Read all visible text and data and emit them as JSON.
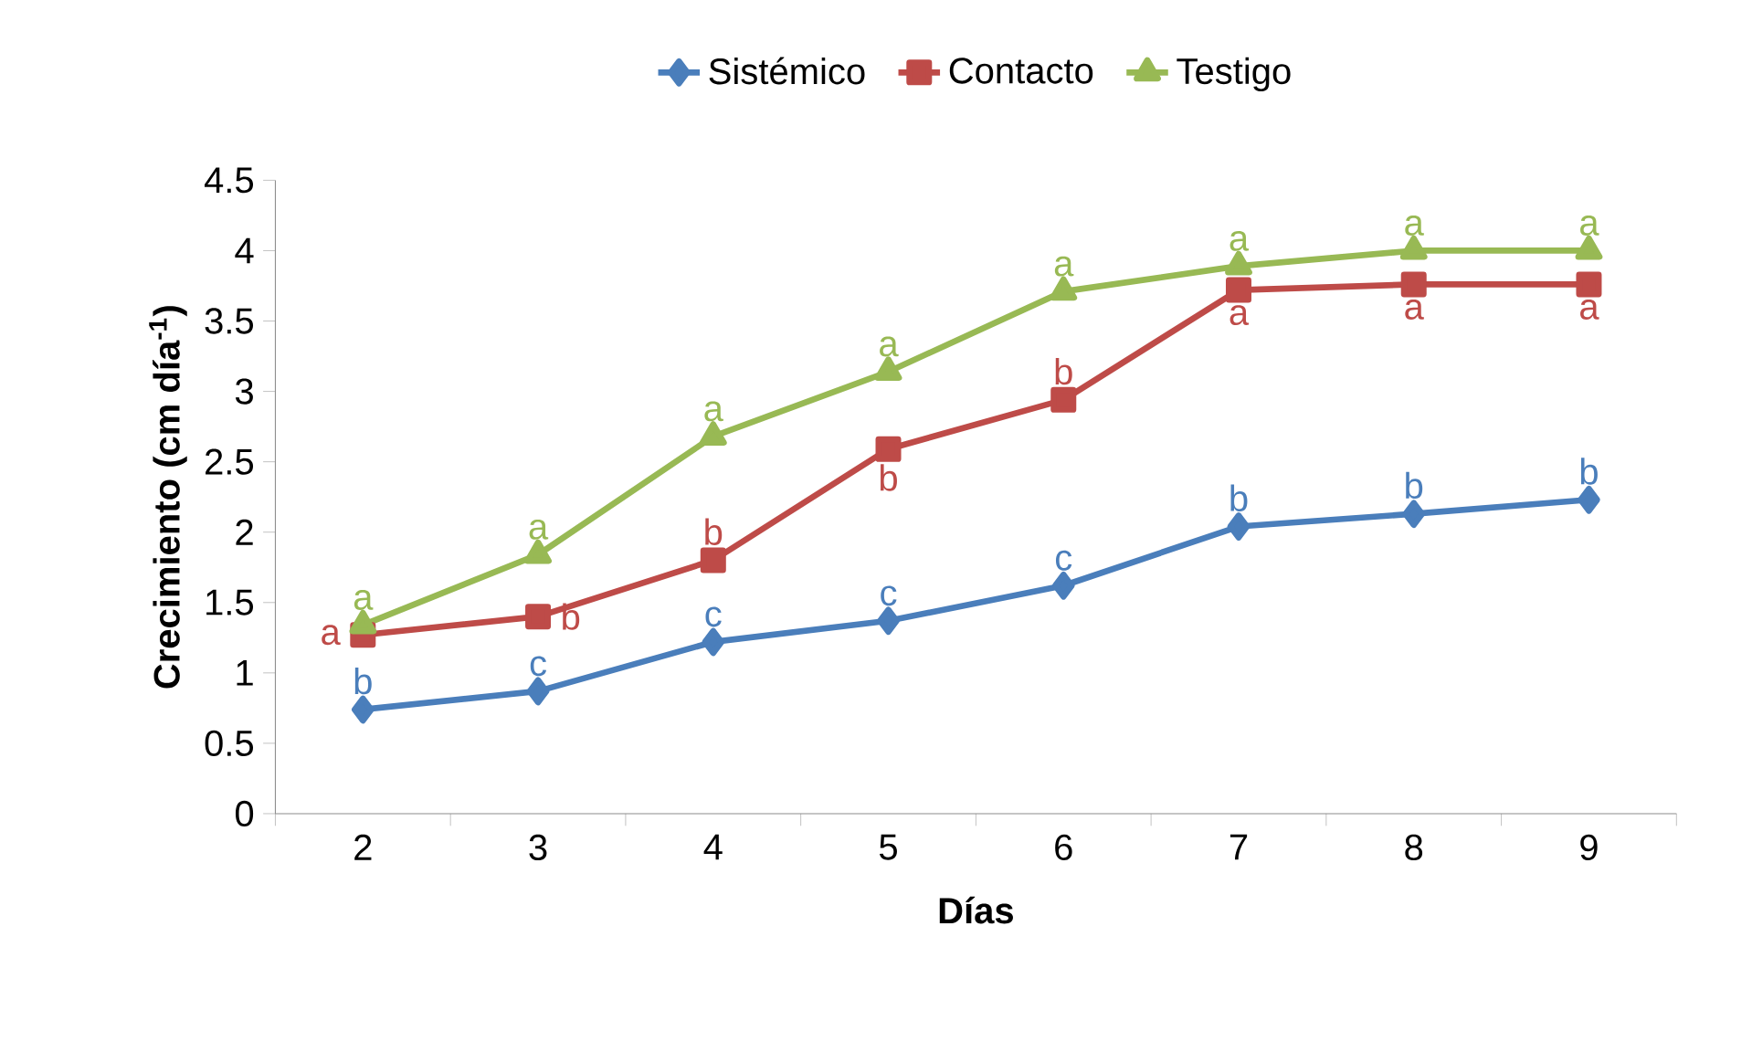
{
  "chart_data": {
    "type": "line",
    "xlabel": "Días",
    "ylabel": "Crecimiento (cm día$^{-1}$)",
    "categories": [
      "2",
      "3",
      "4",
      "5",
      "6",
      "7",
      "8",
      "9"
    ],
    "ylim": [
      0,
      4.5
    ],
    "yticks": [
      0,
      0.5,
      1,
      1.5,
      2,
      2.5,
      3,
      3.5,
      4,
      4.5
    ],
    "legend": "top",
    "grid": false,
    "line_style": "solid",
    "series": [
      {
        "name": "Sistémico",
        "color": "#4a7ebb",
        "marker": "diamond",
        "values": [
          0.74,
          0.87,
          1.22,
          1.37,
          1.62,
          2.04,
          2.13,
          2.23
        ]
      },
      {
        "name": "Contacto",
        "color": "#be4b48",
        "marker": "square",
        "values": [
          1.27,
          1.4,
          1.8,
          2.59,
          2.94,
          3.72,
          3.76,
          3.76
        ]
      },
      {
        "name": "Testigo",
        "color": "#98b954",
        "marker": "triangle",
        "values": [
          1.34,
          1.84,
          2.68,
          3.14,
          3.71,
          3.89,
          4.0,
          4.0
        ]
      }
    ],
    "annotations": [
      {
        "text": "b",
        "x": "2",
        "y": 0.74
      },
      {
        "text": "c",
        "x": "3",
        "y": 0.87
      },
      {
        "text": "c",
        "x": "4",
        "y": 1.22
      },
      {
        "text": "c",
        "x": "5",
        "y": 1.37
      },
      {
        "text": "c",
        "x": "6",
        "y": 1.62
      },
      {
        "text": "b",
        "x": "7",
        "y": 2.04
      },
      {
        "text": "b",
        "x": "8",
        "y": 2.13
      },
      {
        "text": "b",
        "x": "9",
        "y": 2.23
      },
      {
        "text": "a",
        "x": "2",
        "y": 1.27
      },
      {
        "text": "b",
        "x": "3",
        "y": 1.4
      },
      {
        "text": "b",
        "x": "4",
        "y": 1.8
      },
      {
        "text": "b",
        "x": "5",
        "y": 2.59
      },
      {
        "text": "b",
        "x": "6",
        "y": 2.94
      },
      {
        "text": "a",
        "x": "7",
        "y": 3.72
      },
      {
        "text": "a",
        "x": "8",
        "y": 3.76
      },
      {
        "text": "a",
        "x": "9",
        "y": 3.76
      },
      {
        "text": "a",
        "x": "2",
        "y": 1.34
      },
      {
        "text": "a",
        "x": "3",
        "y": 1.84
      },
      {
        "text": "a",
        "x": "4",
        "y": 2.68
      },
      {
        "text": "a",
        "x": "5",
        "y": 3.14
      },
      {
        "text": "a",
        "x": "6",
        "y": 3.71
      },
      {
        "text": "a",
        "x": "7",
        "y": 3.89
      },
      {
        "text": "a",
        "x": "8",
        "y": 4.0
      },
      {
        "text": "a",
        "x": "9",
        "y": 4.0
      }
    ]
  }
}
